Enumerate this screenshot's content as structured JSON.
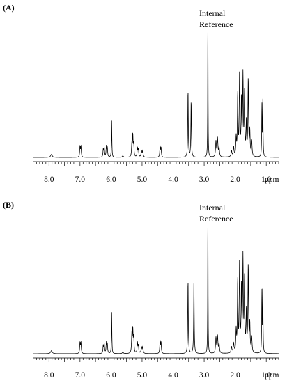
{
  "chart_data": [
    {
      "type": "line",
      "panel_label": "(A)",
      "title": "",
      "xlabel": "ppm",
      "ylabel": "",
      "x_reversed": true,
      "xlim": [
        8.5,
        0.6
      ],
      "ylim": [
        0,
        1.0
      ],
      "grid": false,
      "x_ticks": [
        8.0,
        7.0,
        6.0,
        5.0,
        4.0,
        3.0,
        2.0,
        1.0
      ],
      "x_tick_labels": [
        "8.0",
        "7.0",
        "6.0",
        "5.0",
        "4.0",
        "3.0",
        "2.0",
        "1.0"
      ],
      "annotations": [
        {
          "text_lines": [
            "Internal",
            "Reference"
          ],
          "x": 2.88
        }
      ],
      "peaks": [
        {
          "ppm": 7.92,
          "height": 0.02,
          "width": 0.03
        },
        {
          "ppm": 7.0,
          "height": 0.07,
          "width": 0.012
        },
        {
          "ppm": 6.97,
          "height": 0.07,
          "width": 0.012
        },
        {
          "ppm": 6.25,
          "height": 0.05,
          "width": 0.012
        },
        {
          "ppm": 6.22,
          "height": 0.06,
          "width": 0.012
        },
        {
          "ppm": 6.15,
          "height": 0.07,
          "width": 0.012
        },
        {
          "ppm": 6.12,
          "height": 0.06,
          "width": 0.012
        },
        {
          "ppm": 5.98,
          "height": 0.24,
          "width": 0.008
        },
        {
          "ppm": 5.62,
          "height": 0.01,
          "width": 0.02
        },
        {
          "ppm": 5.33,
          "height": 0.08,
          "width": 0.012
        },
        {
          "ppm": 5.3,
          "height": 0.14,
          "width": 0.012
        },
        {
          "ppm": 5.27,
          "height": 0.08,
          "width": 0.012
        },
        {
          "ppm": 5.15,
          "height": 0.06,
          "width": 0.012
        },
        {
          "ppm": 5.12,
          "height": 0.05,
          "width": 0.012
        },
        {
          "ppm": 5.02,
          "height": 0.04,
          "width": 0.015
        },
        {
          "ppm": 4.98,
          "height": 0.04,
          "width": 0.015
        },
        {
          "ppm": 4.42,
          "height": 0.07,
          "width": 0.012
        },
        {
          "ppm": 4.39,
          "height": 0.06,
          "width": 0.012
        },
        {
          "ppm": 3.52,
          "height": 0.44,
          "width": 0.01
        },
        {
          "ppm": 3.42,
          "height": 0.37,
          "width": 0.01
        },
        {
          "ppm": 2.88,
          "height": 0.98,
          "width": 0.006
        },
        {
          "ppm": 2.62,
          "height": 0.1,
          "width": 0.015
        },
        {
          "ppm": 2.57,
          "height": 0.12,
          "width": 0.015
        },
        {
          "ppm": 2.52,
          "height": 0.06,
          "width": 0.015
        },
        {
          "ppm": 2.12,
          "height": 0.04,
          "width": 0.015
        },
        {
          "ppm": 2.05,
          "height": 0.06,
          "width": 0.015
        },
        {
          "ppm": 1.97,
          "height": 0.12,
          "width": 0.012
        },
        {
          "ppm": 1.92,
          "height": 0.4,
          "width": 0.012
        },
        {
          "ppm": 1.86,
          "height": 0.54,
          "width": 0.012
        },
        {
          "ppm": 1.8,
          "height": 0.35,
          "width": 0.012
        },
        {
          "ppm": 1.75,
          "height": 0.52,
          "width": 0.012
        },
        {
          "ppm": 1.7,
          "height": 0.4,
          "width": 0.012
        },
        {
          "ppm": 1.64,
          "height": 0.22,
          "width": 0.012
        },
        {
          "ppm": 1.58,
          "height": 0.5,
          "width": 0.012
        },
        {
          "ppm": 1.53,
          "height": 0.16,
          "width": 0.012
        },
        {
          "ppm": 1.47,
          "height": 0.1,
          "width": 0.015
        },
        {
          "ppm": 1.14,
          "height": 0.34,
          "width": 0.008
        },
        {
          "ppm": 1.11,
          "height": 0.36,
          "width": 0.008
        }
      ]
    },
    {
      "type": "line",
      "panel_label": "(B)",
      "title": "",
      "xlabel": "ppm",
      "ylabel": "",
      "x_reversed": true,
      "xlim": [
        8.5,
        0.6
      ],
      "ylim": [
        0,
        1.0
      ],
      "grid": false,
      "x_ticks": [
        8.0,
        7.0,
        6.0,
        5.0,
        4.0,
        3.0,
        2.0,
        1.0
      ],
      "x_tick_labels": [
        "8.0",
        "7.0",
        "6.0",
        "5.0",
        "4.0",
        "3.0",
        "2.0",
        "1.0"
      ],
      "annotations": [
        {
          "text_lines": [
            "Internal",
            "Reference"
          ],
          "x": 2.88
        }
      ],
      "peaks": [
        {
          "ppm": 7.92,
          "height": 0.02,
          "width": 0.03
        },
        {
          "ppm": 7.0,
          "height": 0.07,
          "width": 0.012
        },
        {
          "ppm": 6.97,
          "height": 0.07,
          "width": 0.012
        },
        {
          "ppm": 6.25,
          "height": 0.05,
          "width": 0.012
        },
        {
          "ppm": 6.22,
          "height": 0.06,
          "width": 0.012
        },
        {
          "ppm": 6.15,
          "height": 0.07,
          "width": 0.012
        },
        {
          "ppm": 6.12,
          "height": 0.06,
          "width": 0.012
        },
        {
          "ppm": 5.98,
          "height": 0.27,
          "width": 0.008
        },
        {
          "ppm": 5.62,
          "height": 0.01,
          "width": 0.02
        },
        {
          "ppm": 5.33,
          "height": 0.12,
          "width": 0.012
        },
        {
          "ppm": 5.3,
          "height": 0.15,
          "width": 0.012
        },
        {
          "ppm": 5.27,
          "height": 0.1,
          "width": 0.012
        },
        {
          "ppm": 5.15,
          "height": 0.07,
          "width": 0.012
        },
        {
          "ppm": 5.12,
          "height": 0.05,
          "width": 0.012
        },
        {
          "ppm": 5.02,
          "height": 0.04,
          "width": 0.015
        },
        {
          "ppm": 4.98,
          "height": 0.04,
          "width": 0.015
        },
        {
          "ppm": 4.42,
          "height": 0.08,
          "width": 0.012
        },
        {
          "ppm": 4.39,
          "height": 0.07,
          "width": 0.012
        },
        {
          "ppm": 3.52,
          "height": 0.48,
          "width": 0.01
        },
        {
          "ppm": 3.33,
          "height": 0.48,
          "width": 0.01
        },
        {
          "ppm": 2.88,
          "height": 0.98,
          "width": 0.006
        },
        {
          "ppm": 2.62,
          "height": 0.1,
          "width": 0.015
        },
        {
          "ppm": 2.57,
          "height": 0.11,
          "width": 0.015
        },
        {
          "ppm": 2.52,
          "height": 0.06,
          "width": 0.015
        },
        {
          "ppm": 2.12,
          "height": 0.04,
          "width": 0.015
        },
        {
          "ppm": 2.05,
          "height": 0.06,
          "width": 0.015
        },
        {
          "ppm": 1.97,
          "height": 0.14,
          "width": 0.012
        },
        {
          "ppm": 1.92,
          "height": 0.46,
          "width": 0.012
        },
        {
          "ppm": 1.86,
          "height": 0.58,
          "width": 0.012
        },
        {
          "ppm": 1.8,
          "height": 0.4,
          "width": 0.012
        },
        {
          "ppm": 1.75,
          "height": 0.6,
          "width": 0.012
        },
        {
          "ppm": 1.7,
          "height": 0.46,
          "width": 0.012
        },
        {
          "ppm": 1.64,
          "height": 0.26,
          "width": 0.012
        },
        {
          "ppm": 1.58,
          "height": 0.56,
          "width": 0.012
        },
        {
          "ppm": 1.53,
          "height": 0.18,
          "width": 0.012
        },
        {
          "ppm": 1.47,
          "height": 0.1,
          "width": 0.015
        },
        {
          "ppm": 1.14,
          "height": 0.4,
          "width": 0.008
        },
        {
          "ppm": 1.11,
          "height": 0.4,
          "width": 0.008
        }
      ]
    }
  ]
}
